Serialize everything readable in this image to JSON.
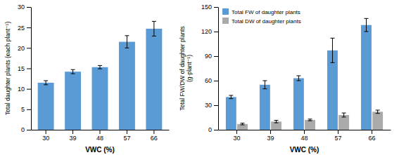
{
  "chart_data": [
    {
      "type": "bar",
      "xlabel": "VWC (%)",
      "ylabel": "Total daughter plants (each plant⁻¹)",
      "categories": [
        "30",
        "39",
        "48",
        "57",
        "66"
      ],
      "values": [
        11.5,
        14.2,
        15.3,
        21.5,
        24.7
      ],
      "errors": [
        0.5,
        0.5,
        0.4,
        1.5,
        1.8
      ],
      "color": "#5B9BD5",
      "ylim": [
        0,
        30
      ],
      "yticks": [
        0,
        5,
        10,
        15,
        20,
        25,
        30
      ]
    },
    {
      "type": "bar",
      "xlabel": "VWC (%)",
      "ylabel": "Total FW/DW of daughter plants\n(g·plant⁻¹)",
      "categories": [
        "30",
        "39",
        "48",
        "57",
        "66"
      ],
      "series": [
        {
          "name": "Total FW of daughter plants",
          "color": "#5B9BD5",
          "values": [
            40,
            55,
            63,
            97,
            128
          ],
          "errors": [
            2,
            5,
            3,
            15,
            8
          ]
        },
        {
          "name": "Total DW of daughter plants",
          "color": "#AAAAAA",
          "values": [
            7,
            10,
            12,
            18,
            22
          ],
          "errors": [
            1,
            1.5,
            1,
            2.5,
            2
          ]
        }
      ],
      "ylim": [
        0,
        150
      ],
      "yticks": [
        0,
        30,
        60,
        90,
        120,
        150
      ],
      "legend": "upper left"
    }
  ]
}
